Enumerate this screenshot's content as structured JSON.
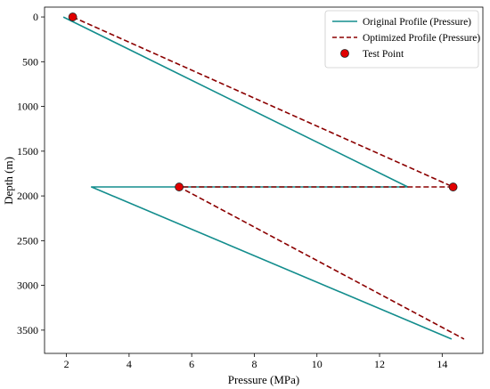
{
  "chart_data": {
    "type": "line",
    "title": "",
    "xlabel": "Pressure (MPa)",
    "ylabel": "Depth (m)",
    "xlim": [
      1.3,
      15.3
    ],
    "ylim": [
      3760,
      -110
    ],
    "y_inverted": true,
    "grid": false,
    "legend_position": "top-right",
    "xticks": [
      2,
      4,
      6,
      8,
      10,
      12,
      14
    ],
    "yticks": [
      0,
      500,
      1000,
      1500,
      2000,
      2500,
      3000,
      3500
    ],
    "series": [
      {
        "name": "Original Profile (Pressure)",
        "style": "solid",
        "color": "#138d8d",
        "points": [
          [
            1.9,
            0
          ],
          [
            12.9,
            1900
          ],
          [
            2.8,
            1900
          ],
          [
            14.3,
            3600
          ]
        ]
      },
      {
        "name": "Optimized Profile (Pressure)",
        "style": "dashed",
        "color": "#8b0000",
        "points": [
          [
            2.2,
            0
          ],
          [
            14.35,
            1900
          ],
          [
            5.6,
            1900
          ],
          [
            14.7,
            3600
          ]
        ]
      },
      {
        "name": "Test Point",
        "style": "marker",
        "color": "#e00000",
        "edgecolor": "#222222",
        "points": [
          [
            2.2,
            0
          ],
          [
            14.35,
            1900
          ],
          [
            5.6,
            1900
          ]
        ]
      }
    ]
  }
}
